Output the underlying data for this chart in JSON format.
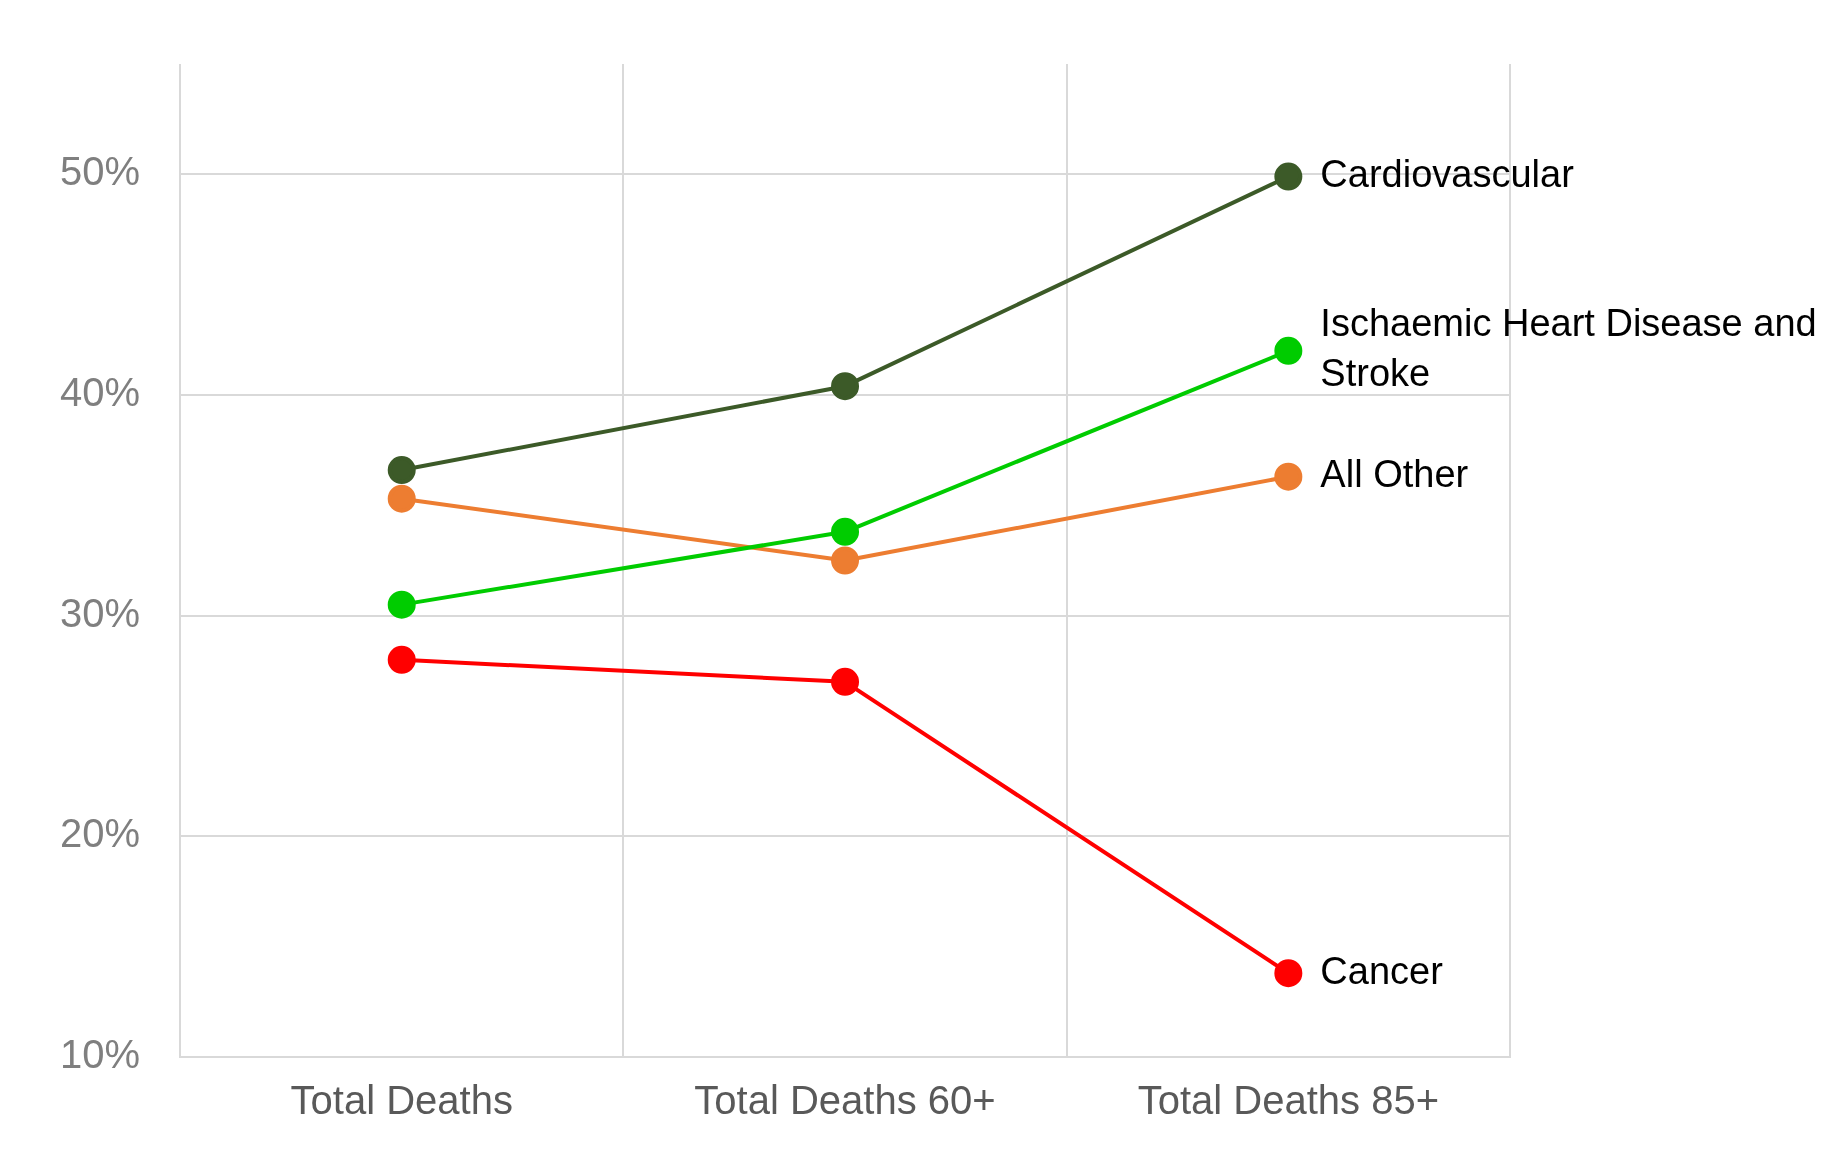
{
  "chart_data": {
    "type": "line",
    "categories": [
      "Total Deaths",
      "Total Deaths 60+",
      "Total Deaths 85+"
    ],
    "series": [
      {
        "name": "Cardiovascular",
        "color": "#3c5a28",
        "values": [
          36.6,
          40.4,
          49.9
        ]
      },
      {
        "name": "Ischaemic Heart Disease and Stroke",
        "color": "#00cc00",
        "values": [
          30.5,
          33.8,
          42.0
        ]
      },
      {
        "name": "All Other",
        "color": "#ed7d31",
        "values": [
          35.3,
          32.5,
          36.3
        ]
      },
      {
        "name": "Cancer",
        "color": "#ff0000",
        "values": [
          28.0,
          27.0,
          13.8
        ]
      }
    ],
    "ylim": [
      10,
      55
    ],
    "yticks": [
      {
        "value": 10,
        "label": "10%"
      },
      {
        "value": 20,
        "label": "20%"
      },
      {
        "value": 30,
        "label": "30%"
      },
      {
        "value": 40,
        "label": "40%"
      },
      {
        "value": 50,
        "label": "50%"
      }
    ],
    "grid": true,
    "legend": false,
    "marker": "circle",
    "line_style": "solid"
  }
}
